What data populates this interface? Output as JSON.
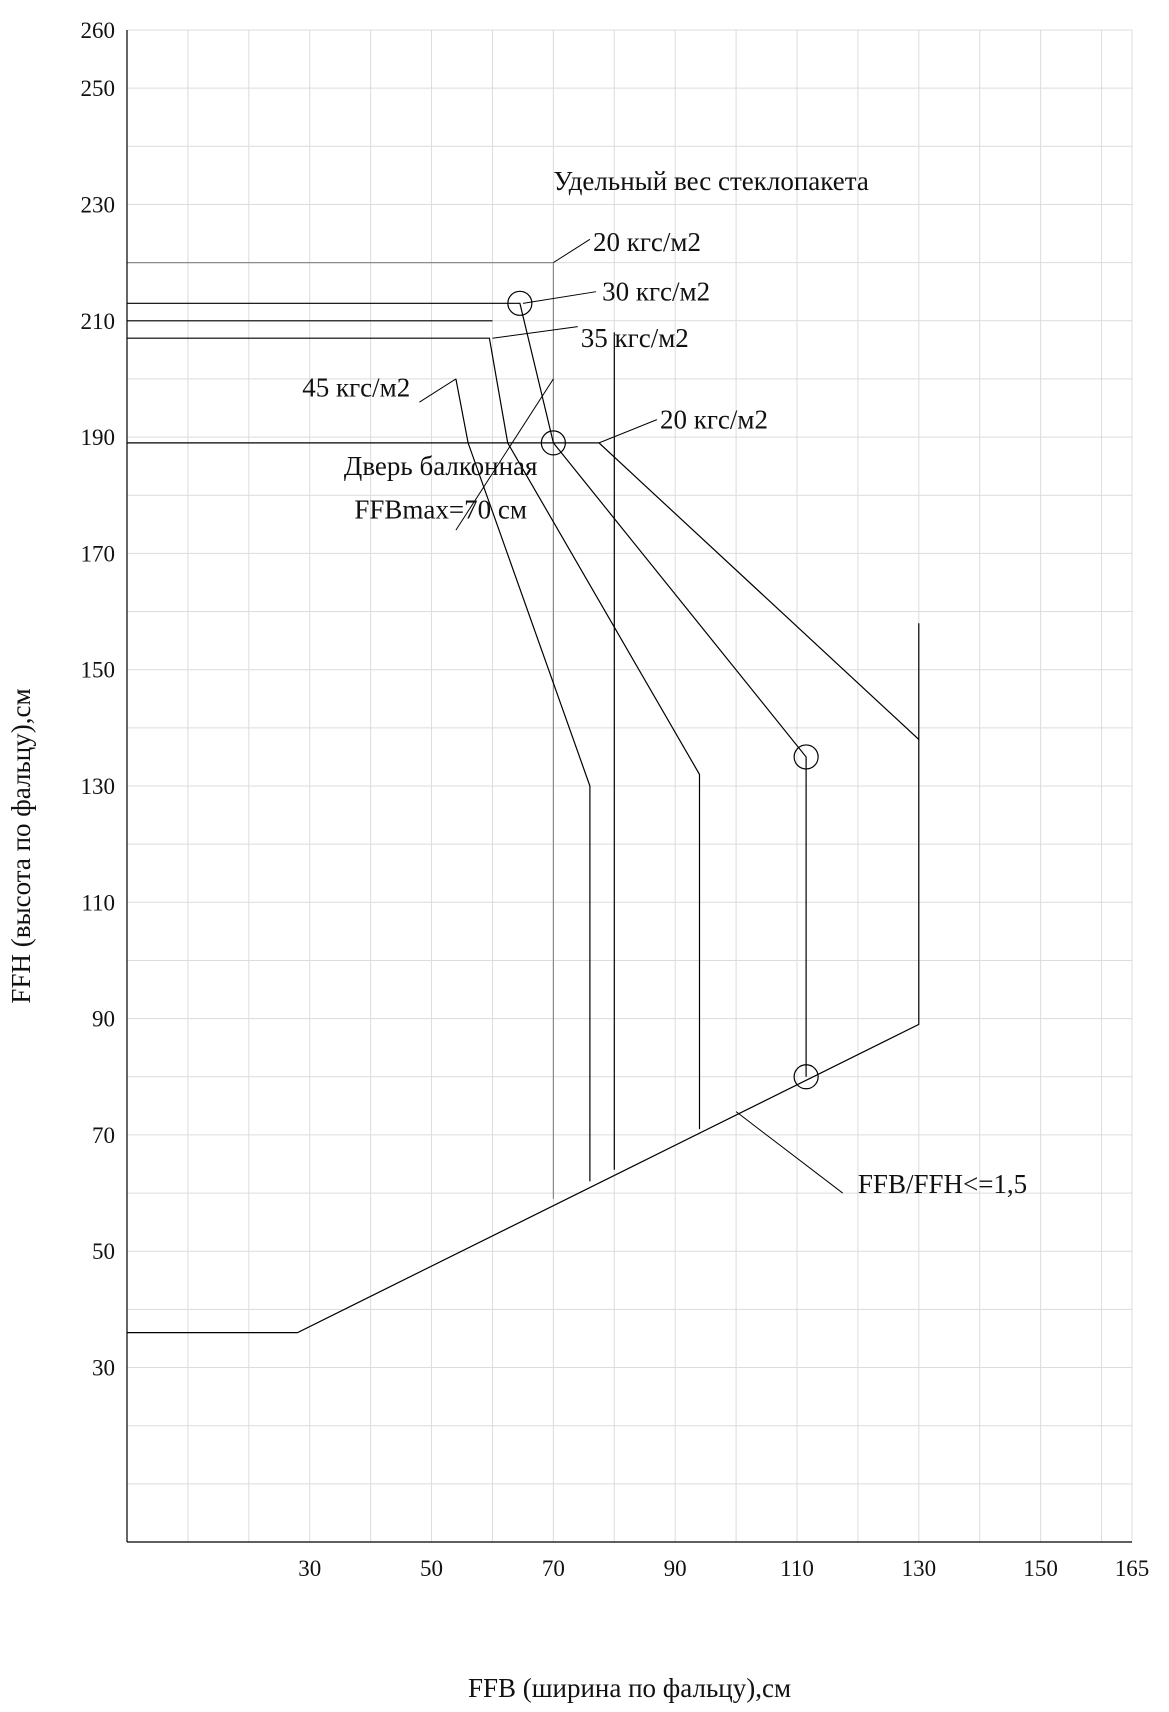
{
  "chart_data": {
    "type": "line",
    "title": "",
    "xlabel": "FFB (ширина по фальцу),см",
    "ylabel": "FFH (высота по фальцу),см",
    "xlim": [
      0,
      165
    ],
    "ylim": [
      0,
      260
    ],
    "grid": true,
    "x_grid_step": 10,
    "y_grid_step": 10,
    "x_ticks": [
      30,
      50,
      70,
      90,
      110,
      130,
      150,
      165
    ],
    "y_ticks": [
      30,
      50,
      70,
      90,
      110,
      130,
      150,
      170,
      190,
      210,
      230,
      250,
      260
    ],
    "legend_title": "Удельный вес стеклопакета",
    "series": [
      {
        "key": "w20",
        "style": "grey",
        "points": [
          [
            0,
            220
          ],
          [
            70,
            220
          ],
          [
            70,
            59
          ]
        ]
      },
      {
        "key": "w30",
        "style": "black",
        "points": [
          [
            0,
            213
          ],
          [
            64.5,
            213
          ],
          [
            70,
            189
          ],
          [
            111.5,
            135
          ],
          [
            111.5,
            80
          ]
        ]
      },
      {
        "key": "w35",
        "style": "black",
        "points": [
          [
            0,
            207
          ],
          [
            59.5,
            207
          ],
          [
            62.5,
            189
          ],
          [
            94,
            132
          ],
          [
            94,
            71
          ]
        ]
      },
      {
        "key": "w45",
        "style": "black",
        "points": [
          [
            54,
            200
          ],
          [
            56,
            189
          ],
          [
            76,
            130
          ],
          [
            76,
            62
          ]
        ]
      },
      {
        "key": "w20_low",
        "style": "black",
        "points": [
          [
            0,
            189
          ],
          [
            77.5,
            189
          ],
          [
            130,
            138
          ],
          [
            130,
            158
          ]
        ]
      },
      {
        "key": "balcony_top",
        "style": "black",
        "points": [
          [
            0,
            210
          ],
          [
            60,
            210
          ]
        ]
      },
      {
        "key": "balcony_max",
        "style": "black",
        "points": [
          [
            80,
            208
          ],
          [
            80,
            64
          ]
        ]
      },
      {
        "key": "lower_bound",
        "style": "black",
        "points": [
          [
            0,
            36
          ],
          [
            28,
            36
          ],
          [
            130,
            89
          ],
          [
            130,
            138
          ]
        ]
      }
    ],
    "markers": [
      {
        "x": 64.5,
        "y": 213
      },
      {
        "x": 70,
        "y": 189
      },
      {
        "x": 111.5,
        "y": 135
      },
      {
        "x": 111.5,
        "y": 80
      }
    ],
    "annotations": [
      {
        "key": "legend_title",
        "text": "Удельный вес стеклопакета",
        "at": [
          70,
          232.5
        ],
        "anchor": "start",
        "leader": null
      },
      {
        "key": "a20_top",
        "text": "20 кгс/м2",
        "at": [
          76.5,
          222
        ],
        "anchor": "start",
        "leader": [
          [
            70,
            220
          ],
          [
            76,
            224
          ]
        ]
      },
      {
        "key": "a30",
        "text": "30 кгс/м2",
        "at": [
          78,
          213.5
        ],
        "anchor": "start",
        "leader": [
          [
            65,
            213
          ],
          [
            77,
            215
          ]
        ]
      },
      {
        "key": "a35",
        "text": "35 кгс/м2",
        "at": [
          74.5,
          205.5
        ],
        "anchor": "start",
        "leader": [
          [
            60,
            207
          ],
          [
            74,
            209
          ]
        ]
      },
      {
        "key": "a45",
        "text": "45 кгс/м2",
        "at": [
          46.5,
          197
        ],
        "anchor": "end",
        "leader": [
          [
            48,
            196
          ],
          [
            54,
            200
          ]
        ]
      },
      {
        "key": "a20_low",
        "text": "20 кгс/м2",
        "at": [
          87.5,
          191.5
        ],
        "anchor": "start",
        "leader": [
          [
            77.5,
            189
          ],
          [
            87,
            193
          ]
        ]
      },
      {
        "key": "balcony1",
        "text": "Дверь балконная",
        "at": [
          51.5,
          183.5
        ],
        "anchor": "middle",
        "leader": null
      },
      {
        "key": "balcony2",
        "text": "FFBmax=70 см",
        "at": [
          51.5,
          176
        ],
        "anchor": "middle",
        "leader": [
          [
            54,
            174
          ],
          [
            70,
            200
          ]
        ]
      },
      {
        "key": "ratio",
        "text": "FFB/FFH<=1,5",
        "at": [
          120,
          60
        ],
        "anchor": "start",
        "leader": [
          [
            100,
            74
          ],
          [
            117.5,
            60
          ]
        ]
      }
    ]
  }
}
